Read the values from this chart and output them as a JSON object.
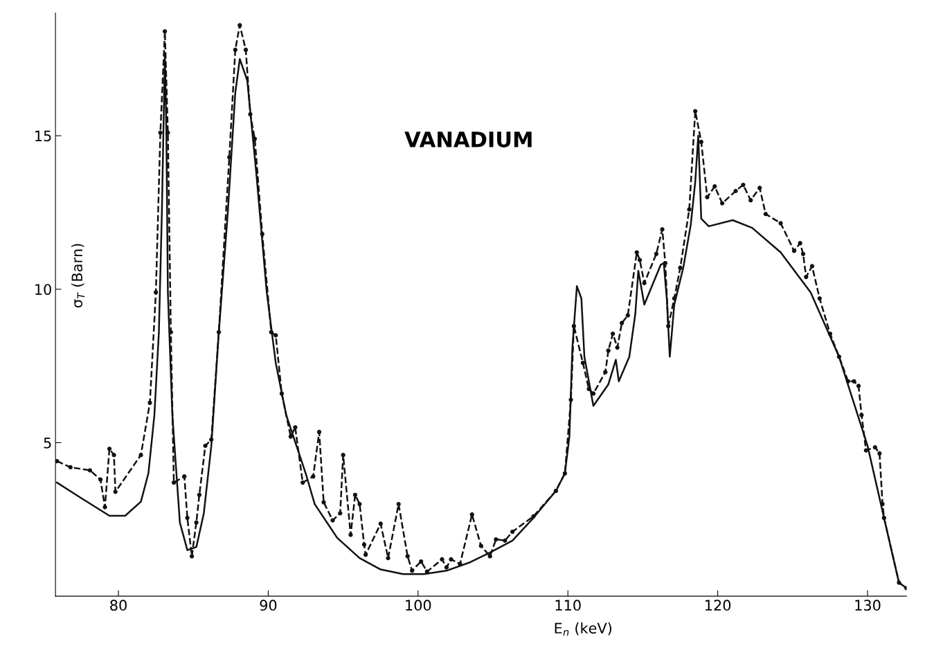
{
  "chart_data": {
    "type": "line",
    "xlabel": "E$_{n}$ (keV)",
    "ylabel": "σ$_{T}$ (Barn)",
    "annotations": [
      "VANADIUM"
    ],
    "xlim": [
      75.8,
      132.6
    ],
    "ylim": [
      0,
      19
    ],
    "xticks": [
      80,
      90,
      100,
      110,
      120,
      130
    ],
    "yticks": [
      5,
      10,
      15
    ],
    "grid": false,
    "legend": false,
    "series": [
      {
        "color": "#111111",
        "line_style": "solid",
        "marker": "none",
        "x": [
          75.9,
          77.5,
          79.4,
          80.45,
          81.5,
          82.0,
          82.4,
          82.7,
          82.9,
          83.1,
          83.2,
          83.3,
          83.6,
          84.1,
          84.6,
          85.2,
          85.7,
          86.2,
          86.7,
          87.3,
          87.8,
          88.1,
          88.6,
          89.2,
          89.9,
          90.5,
          91.2,
          92.5,
          93.1,
          94.6,
          96.1,
          97.5,
          99.0,
          100.4,
          101.9,
          103.4,
          104.8,
          106.3,
          107.7,
          109.2,
          109.8,
          110.1,
          110.3,
          110.6,
          110.9,
          111.1,
          111.7,
          112.7,
          113.2,
          113.4,
          114.1,
          114.5,
          114.7,
          115.1,
          116.2,
          116.4,
          116.6,
          116.8,
          117.1,
          117.7,
          118.2,
          118.5,
          118.7,
          118.9,
          119.4,
          121.0,
          122.3,
          124.2,
          126.2,
          128.1,
          130.0,
          131.1,
          132.1,
          132.6
        ],
        "values": [
          3.7,
          3.2,
          2.62,
          2.62,
          3.08,
          4.0,
          5.9,
          8.6,
          12.5,
          17.6,
          15.1,
          9.9,
          5.9,
          2.4,
          1.5,
          1.6,
          2.7,
          4.9,
          8.6,
          12.5,
          16.4,
          17.5,
          16.8,
          13.8,
          9.9,
          7.6,
          5.9,
          4.0,
          3.0,
          1.9,
          1.24,
          0.87,
          0.72,
          0.72,
          0.83,
          1.09,
          1.42,
          1.81,
          2.55,
          3.43,
          4.0,
          5.2,
          8.1,
          10.1,
          9.7,
          7.8,
          6.2,
          6.9,
          7.7,
          7.0,
          7.8,
          9.2,
          10.6,
          9.5,
          10.8,
          10.85,
          9.7,
          7.8,
          9.5,
          10.7,
          12.1,
          13.5,
          15.0,
          12.3,
          12.05,
          12.25,
          12.0,
          11.2,
          9.9,
          7.8,
          4.9,
          2.55,
          0.44,
          0.26
        ]
      },
      {
        "color": "#111111",
        "line_style": "dashed",
        "marker": "circle",
        "x": [
          75.9,
          76.8,
          78.1,
          78.8,
          79.1,
          79.4,
          79.7,
          79.8,
          81.5,
          82.1,
          82.5,
          82.8,
          83.1,
          83.3,
          83.5,
          83.7,
          84.4,
          84.6,
          84.9,
          85.2,
          85.4,
          85.8,
          86.2,
          86.7,
          87.4,
          87.8,
          88.1,
          88.5,
          88.8,
          89.1,
          89.6,
          90.2,
          90.5,
          90.9,
          91.5,
          91.8,
          92.3,
          93.0,
          93.4,
          93.7,
          94.3,
          94.8,
          95.0,
          95.5,
          95.8,
          96.1,
          96.4,
          96.5,
          97.5,
          98.0,
          98.7,
          99.3,
          99.6,
          100.2,
          100.6,
          101.6,
          101.9,
          102.2,
          102.8,
          103.6,
          104.2,
          104.8,
          105.2,
          105.8,
          106.3,
          107.7,
          109.2,
          109.8,
          110.2,
          110.4,
          111.0,
          111.4,
          111.7,
          112.5,
          112.7,
          113.0,
          113.3,
          113.6,
          114.0,
          114.6,
          114.8,
          115.1,
          115.9,
          116.3,
          116.5,
          116.7,
          117.1,
          117.5,
          118.1,
          118.5,
          118.9,
          119.3,
          119.8,
          120.3,
          121.2,
          121.7,
          122.2,
          122.8,
          123.2,
          124.2,
          125.1,
          125.5,
          125.7,
          125.9,
          126.3,
          126.8,
          127.5,
          128.1,
          128.7,
          129.1,
          129.4,
          129.6,
          129.9,
          130.5,
          130.8,
          131.0,
          131.1,
          132.1,
          132.6
        ],
        "values": [
          4.4,
          4.2,
          4.1,
          3.8,
          2.9,
          4.8,
          4.6,
          3.4,
          4.6,
          6.3,
          9.9,
          15.1,
          18.4,
          15.1,
          8.6,
          3.7,
          3.9,
          2.55,
          1.3,
          2.4,
          3.3,
          4.9,
          5.1,
          8.6,
          14.3,
          17.8,
          18.6,
          17.8,
          15.7,
          14.9,
          11.8,
          8.6,
          8.5,
          6.6,
          5.2,
          5.5,
          3.7,
          3.9,
          5.35,
          3.06,
          2.47,
          2.7,
          4.6,
          2.0,
          3.3,
          3.0,
          1.68,
          1.35,
          2.36,
          1.24,
          3.0,
          1.3,
          0.83,
          1.13,
          0.8,
          1.2,
          0.94,
          1.2,
          1.05,
          2.66,
          1.64,
          1.3,
          1.85,
          1.81,
          2.1,
          2.6,
          3.43,
          4.0,
          6.4,
          8.8,
          7.6,
          6.75,
          6.6,
          7.3,
          8.0,
          8.55,
          8.1,
          8.9,
          9.15,
          11.2,
          10.95,
          10.2,
          11.15,
          11.95,
          10.85,
          8.8,
          9.7,
          10.7,
          12.6,
          15.8,
          14.8,
          13.0,
          13.35,
          12.8,
          13.2,
          13.4,
          12.9,
          13.3,
          12.45,
          12.15,
          11.25,
          11.5,
          11.15,
          10.4,
          10.75,
          9.7,
          8.55,
          7.8,
          7.0,
          7.0,
          6.85,
          5.9,
          4.75,
          4.85,
          4.65,
          3.0,
          2.55,
          0.44,
          0.26
        ]
      }
    ]
  }
}
